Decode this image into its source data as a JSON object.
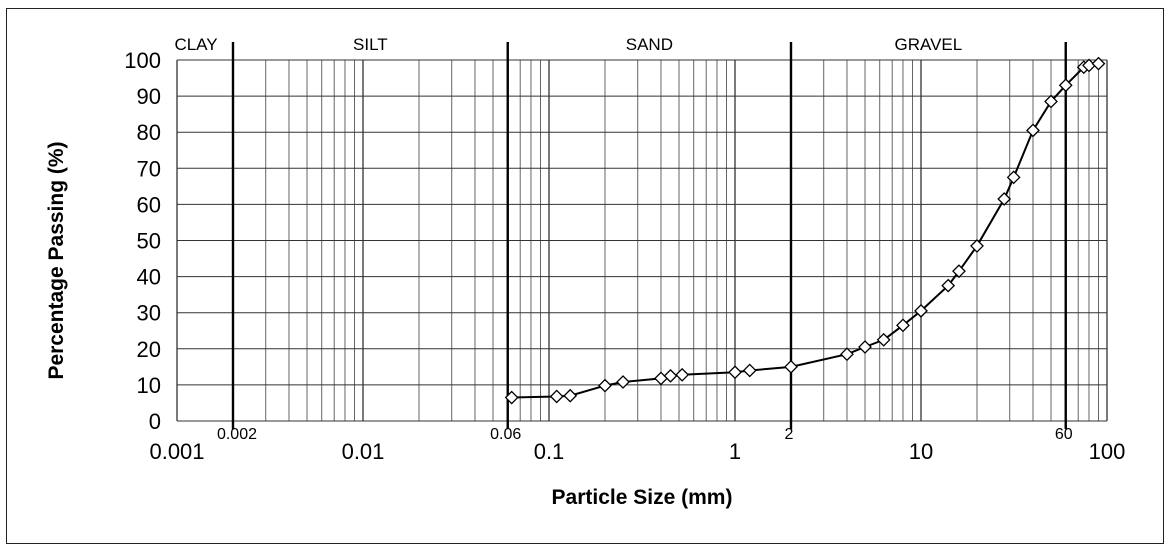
{
  "chart_data": {
    "type": "scatter",
    "xlabel": "Particle Size (mm)",
    "ylabel": "Percentage Passing (%)",
    "xscale": "log",
    "xlim": [
      0.001,
      100
    ],
    "ylim": [
      0,
      100
    ],
    "grid": true,
    "x_tick_labels": [
      "0.001",
      "0.01",
      "0.1",
      "1",
      "10",
      "100"
    ],
    "y_tick_labels": [
      "0",
      "10",
      "20",
      "30",
      "40",
      "50",
      "60",
      "70",
      "80",
      "90",
      "100"
    ],
    "boundary_labels": [
      "0.002",
      "0.06",
      "2",
      "60"
    ],
    "boundaries": [
      0.002,
      0.06,
      2,
      60
    ],
    "zones": [
      "CLAY",
      "SILT",
      "SAND",
      "GRAVEL"
    ],
    "series": [
      {
        "x": [
          0.063,
          0.11,
          0.13,
          0.2,
          0.25,
          0.4,
          0.45,
          0.52,
          1.0,
          1.2,
          2.0,
          4.0,
          5.0,
          6.3,
          8.0,
          10.0,
          14.0,
          16.0,
          20.0,
          28.0,
          31.5,
          40.0,
          50.0,
          60.0,
          75.0,
          80.0,
          90.0
        ],
        "y": [
          6.5,
          6.8,
          7.0,
          9.8,
          10.8,
          11.8,
          12.5,
          12.8,
          13.5,
          14.0,
          15.0,
          18.5,
          20.5,
          22.5,
          26.5,
          30.5,
          37.5,
          41.5,
          48.5,
          61.5,
          67.5,
          80.5,
          88.5,
          93.0,
          98.0,
          98.5,
          99.0
        ]
      }
    ]
  }
}
